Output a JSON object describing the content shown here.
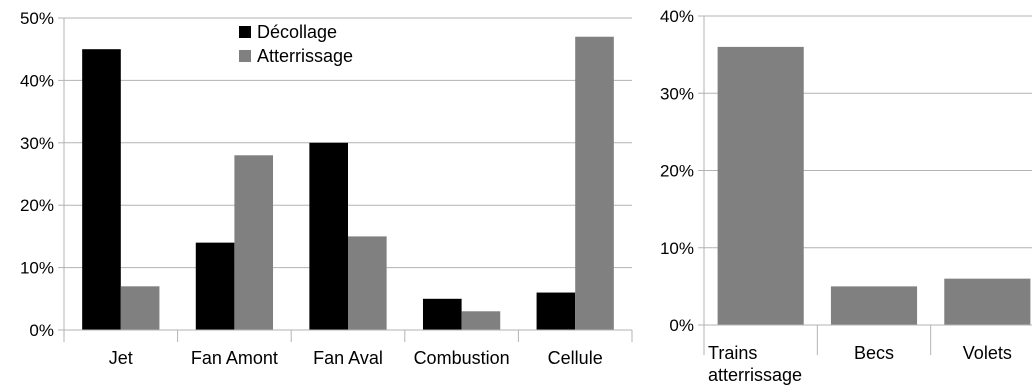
{
  "chart_data": [
    {
      "type": "bar",
      "categories": [
        "Jet",
        "Fan Amont",
        "Fan Aval",
        "Combustion",
        "Cellule"
      ],
      "series": [
        {
          "name": "Décollage",
          "color": "#000000",
          "values": [
            45,
            14,
            30,
            5,
            6
          ]
        },
        {
          "name": "Atterrissage",
          "color": "#808080",
          "values": [
            7,
            28,
            15,
            3,
            47
          ]
        }
      ],
      "yticks": [
        "0%",
        "10%",
        "20%",
        "30%",
        "40%",
        "50%"
      ],
      "ylim": [
        0,
        50
      ],
      "grid": true,
      "legend": "top-center"
    },
    {
      "type": "bar",
      "categories": [
        [
          "Trains",
          "atterrissage"
        ],
        [
          "Becs"
        ],
        [
          "Volets"
        ]
      ],
      "series": [
        {
          "color": "#808080",
          "values": [
            36,
            5,
            6
          ]
        }
      ],
      "yticks": [
        "0%",
        "10%",
        "20%",
        "30%",
        "40%"
      ],
      "ylim": [
        0,
        40
      ],
      "grid": true
    }
  ]
}
